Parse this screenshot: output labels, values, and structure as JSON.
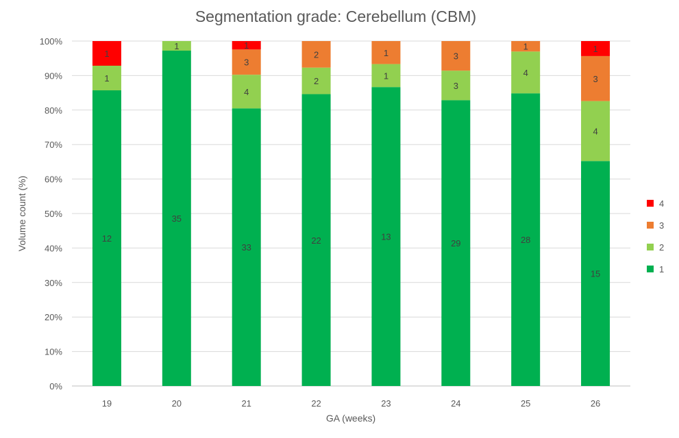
{
  "chart_data": {
    "type": "bar",
    "stacked": "percent",
    "title": "Segmentation grade: Cerebellum (CBM)",
    "xlabel": "GA (weeks)",
    "ylabel": "Volume count (%)",
    "ylim": [
      0,
      100
    ],
    "yticks": [
      "0%",
      "10%",
      "20%",
      "30%",
      "40%",
      "50%",
      "60%",
      "70%",
      "80%",
      "90%",
      "100%"
    ],
    "grid": true,
    "legend_position": "right",
    "categories": [
      "19",
      "20",
      "21",
      "22",
      "23",
      "24",
      "25",
      "26"
    ],
    "series": [
      {
        "name": "1",
        "color": "#00b050",
        "values": [
          12,
          35,
          33,
          22,
          13,
          29,
          28,
          15
        ]
      },
      {
        "name": "2",
        "color": "#92d050",
        "values": [
          1,
          1,
          4,
          2,
          1,
          3,
          4,
          4
        ]
      },
      {
        "name": "3",
        "color": "#ed7d31",
        "values": [
          0,
          0,
          3,
          2,
          1,
          3,
          1,
          3
        ]
      },
      {
        "name": "4",
        "color": "#ff0000",
        "values": [
          1,
          0,
          1,
          0,
          0,
          0,
          0,
          1
        ]
      }
    ]
  }
}
